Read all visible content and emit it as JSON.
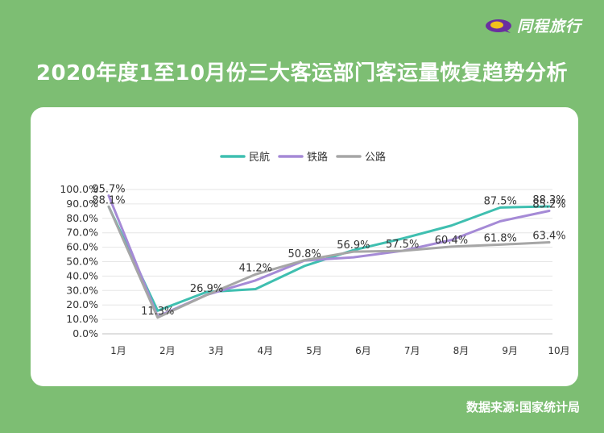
{
  "brand": {
    "logo_text": "同程旅行"
  },
  "title": "2020年度1至10月份三大客运部门客运量恢复趋势分析",
  "source": "数据来源:国家统计局",
  "chart_data": {
    "type": "line",
    "categories": [
      "1月",
      "2月",
      "3月",
      "4月",
      "5月",
      "6月",
      "7月",
      "8月",
      "9月",
      "10月"
    ],
    "series": [
      {
        "name": "民航",
        "color": "#3fbfb0",
        "values": [
          88.1,
          16.0,
          29.0,
          31.0,
          47.0,
          58.0,
          66.0,
          75.0,
          87.5,
          88.3
        ]
      },
      {
        "name": "铁路",
        "color": "#a58ad6",
        "values": [
          95.7,
          12.0,
          27.0,
          37.0,
          50.8,
          53.0,
          57.5,
          65.0,
          78.0,
          85.2
        ]
      },
      {
        "name": "公路",
        "color": "#a6a6a6",
        "values": [
          88.1,
          11.3,
          26.9,
          41.2,
          51.0,
          56.9,
          57.5,
          60.4,
          61.8,
          63.4
        ]
      }
    ],
    "labels": [
      {
        "text": "95.7%",
        "x": 0,
        "y": 95.7
      },
      {
        "text": "88.1%",
        "x": 0,
        "y": 88.1
      },
      {
        "text": "11.3%",
        "x": 1,
        "y": 11.3
      },
      {
        "text": "26.9%",
        "x": 2,
        "y": 26.9
      },
      {
        "text": "41.2%",
        "x": 3,
        "y": 41.2
      },
      {
        "text": "50.8%",
        "x": 4,
        "y": 50.8
      },
      {
        "text": "56.9%",
        "x": 5,
        "y": 56.9
      },
      {
        "text": "57.5%",
        "x": 6,
        "y": 57.5
      },
      {
        "text": "60.4%",
        "x": 7,
        "y": 60.4
      },
      {
        "text": "87.5%",
        "x": 8,
        "y": 87.5
      },
      {
        "text": "61.8%",
        "x": 8,
        "y": 61.8
      },
      {
        "text": "88.3%",
        "x": 9,
        "y": 88.3
      },
      {
        "text": "85.2%",
        "x": 9,
        "y": 85.2
      },
      {
        "text": "63.4%",
        "x": 9,
        "y": 63.4
      }
    ],
    "yticks": [
      "0.0%",
      "10.0%",
      "20.0%",
      "30.0%",
      "40.0%",
      "50.0%",
      "60.0%",
      "70.0%",
      "80.0%",
      "90.0%",
      "100.0%"
    ],
    "ylim": [
      0,
      100
    ],
    "grid": true,
    "legend": "top-center"
  }
}
